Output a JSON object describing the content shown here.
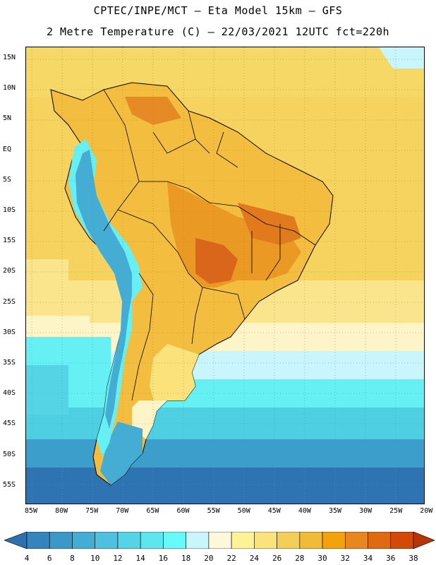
{
  "header": {
    "line1": "CPTEC/INPE/MCT –  Eta Model 15km – GFS",
    "line2": "2 Metre Temperature (C) – 22/03/2021 12UTC fct=220h"
  },
  "map": {
    "lat_labels": [
      "15N",
      "10N",
      "5N",
      "EQ",
      "5S",
      "10S",
      "15S",
      "20S",
      "25S",
      "30S",
      "35S",
      "40S",
      "45S",
      "50S",
      "55S"
    ],
    "lon_labels": [
      "85W",
      "80W",
      "75W",
      "70W",
      "65W",
      "60W",
      "55W",
      "50W",
      "45W",
      "40W",
      "35W",
      "30W",
      "25W",
      "20W"
    ]
  },
  "colorbar": {
    "ticks": [
      "4",
      "6",
      "8",
      "10",
      "12",
      "14",
      "16",
      "18",
      "20",
      "22",
      "24",
      "26",
      "28",
      "30",
      "32",
      "34",
      "36",
      "38"
    ],
    "colors": [
      "#2e6fae",
      "#3484bd",
      "#3c98c8",
      "#45acd3",
      "#4fc0de",
      "#55d4e6",
      "#5ee6ee",
      "#66faf8",
      "#c8f6fc",
      "#fdf8dc",
      "#fdf296",
      "#fbe27a",
      "#f3cf58",
      "#f0bb36",
      "#f3a20e",
      "#ea8620",
      "#e06a10",
      "#d24a06",
      "#b83402"
    ]
  }
}
